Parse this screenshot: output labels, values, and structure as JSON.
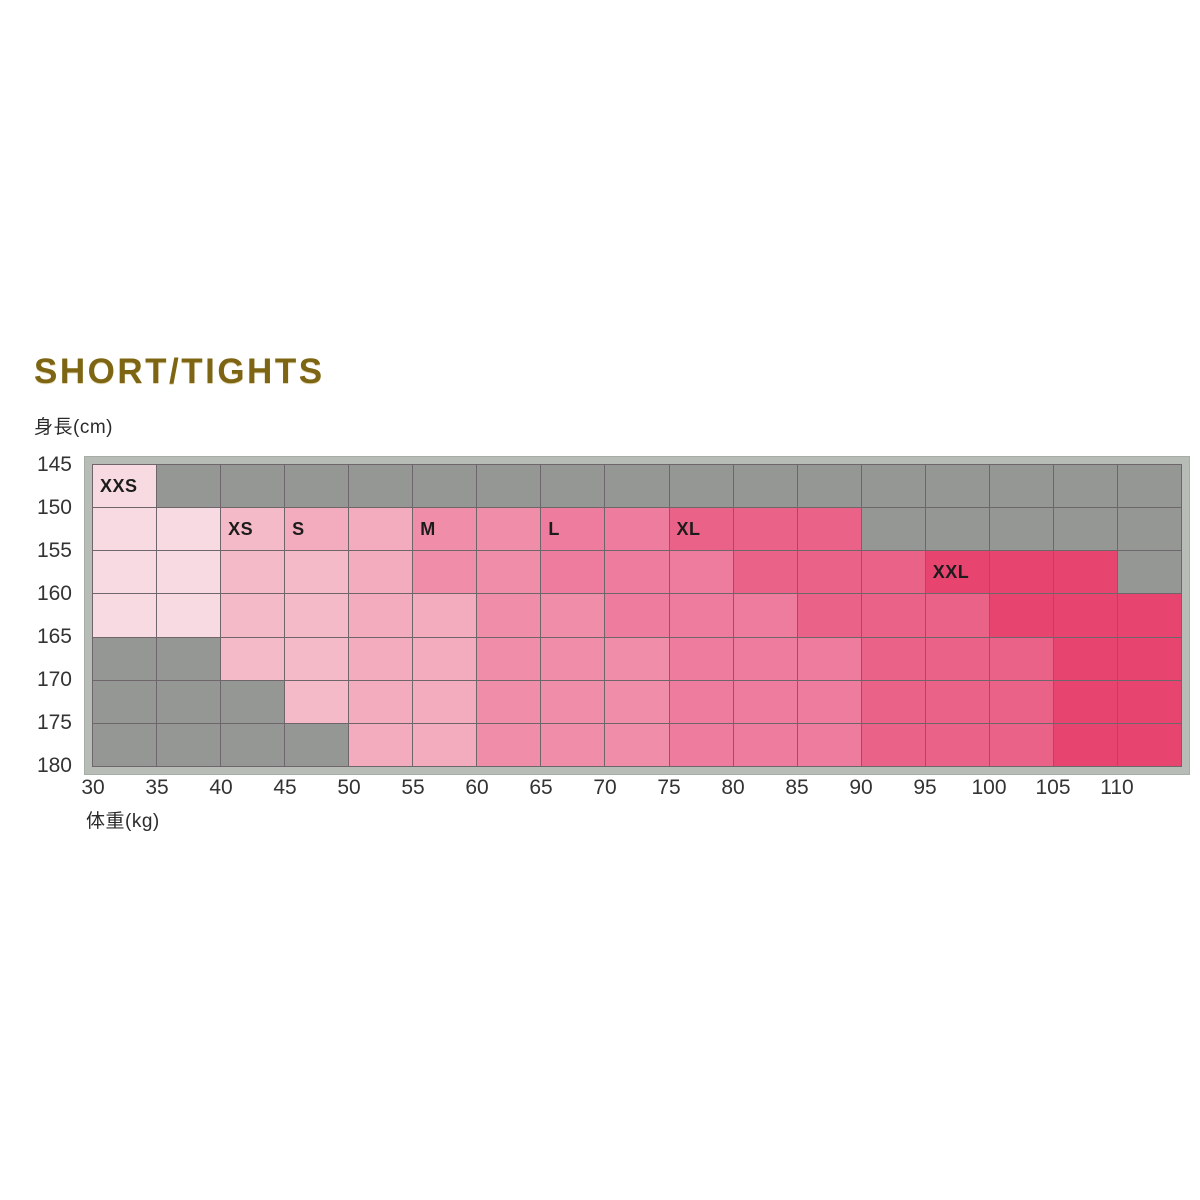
{
  "page": {
    "background": "#ffffff"
  },
  "header": {
    "title": "SHORT/TIGHTS",
    "title_color": "#7e6513"
  },
  "chart_data": {
    "type": "heatmap",
    "title": "SHORT/TIGHTS",
    "x_axis": {
      "label": "体重(kg)",
      "unit": "kg",
      "ticks": [
        "30",
        "35",
        "40",
        "45",
        "50",
        "55",
        "60",
        "65",
        "70",
        "75",
        "80",
        "85",
        "90",
        "95",
        "100",
        "105",
        "110"
      ],
      "note": "ticks mark left edges of the 17 weight columns, 5 kg per column, grid extends one unlabeled column past 110"
    },
    "y_axis": {
      "label": "身長(cm)",
      "unit": "cm",
      "ticks": [
        "145",
        "150",
        "155",
        "160",
        "165",
        "170",
        "175",
        "180"
      ],
      "note": "ticks mark row boundaries of the 7 height rows, 5 cm per row"
    },
    "sizes": [
      {
        "code": "XXS",
        "color": "#f8dbe2"
      },
      {
        "code": "XS",
        "color": "#f5bac8"
      },
      {
        "code": "S",
        "color": "#f3abbe"
      },
      {
        "code": "M",
        "color": "#f08ea9"
      },
      {
        "code": "L",
        "color": "#ee7c9e"
      },
      {
        "code": "XL",
        "color": "#eb6289"
      },
      {
        "code": "XXL",
        "color": "#e7456f"
      }
    ],
    "na_color": "#949794",
    "grid_line_color": "#6f666b",
    "frame_color": "#b7bcb7",
    "rows": [
      {
        "height_range": "145-150",
        "cells": [
          "XXS",
          "-",
          "-",
          "-",
          "-",
          "-",
          "-",
          "-",
          "-",
          "-",
          "-",
          "-",
          "-",
          "-",
          "-",
          "-",
          "-"
        ]
      },
      {
        "height_range": "150-155",
        "cells": [
          "XXS",
          "XXS",
          "XS",
          "S",
          "S",
          "M",
          "M",
          "L",
          "L",
          "XL",
          "XL",
          "XL",
          "-",
          "-",
          "-",
          "-",
          "-"
        ]
      },
      {
        "height_range": "155-160",
        "cells": [
          "XXS",
          "XXS",
          "XS",
          "XS",
          "S",
          "M",
          "M",
          "L",
          "L",
          "L",
          "XL",
          "XL",
          "XL",
          "XXL",
          "XXL",
          "XXL",
          "-"
        ]
      },
      {
        "height_range": "160-165",
        "cells": [
          "XXS",
          "XXS",
          "XS",
          "XS",
          "S",
          "S",
          "M",
          "M",
          "L",
          "L",
          "L",
          "XL",
          "XL",
          "XL",
          "XXL",
          "XXL",
          "XXL"
        ]
      },
      {
        "height_range": "165-170",
        "cells": [
          "-",
          "-",
          "XS",
          "XS",
          "S",
          "S",
          "M",
          "M",
          "M",
          "L",
          "L",
          "L",
          "XL",
          "XL",
          "XL",
          "XXL",
          "XXL"
        ]
      },
      {
        "height_range": "170-175",
        "cells": [
          "-",
          "-",
          "-",
          "XS",
          "S",
          "S",
          "M",
          "M",
          "M",
          "L",
          "L",
          "L",
          "XL",
          "XL",
          "XL",
          "XXL",
          "XXL"
        ]
      },
      {
        "height_range": "175-180",
        "cells": [
          "-",
          "-",
          "-",
          "-",
          "S",
          "S",
          "M",
          "M",
          "M",
          "L",
          "L",
          "L",
          "XL",
          "XL",
          "XL",
          "XXL",
          "XXL"
        ]
      }
    ],
    "size_labels": [
      {
        "text": "XXS",
        "row": 0,
        "col": 0
      },
      {
        "text": "XS",
        "row": 1,
        "col": 2
      },
      {
        "text": "S",
        "row": 1,
        "col": 3
      },
      {
        "text": "M",
        "row": 1,
        "col": 5
      },
      {
        "text": "L",
        "row": 1,
        "col": 7
      },
      {
        "text": "XL",
        "row": 1,
        "col": 9
      },
      {
        "text": "XXL",
        "row": 2,
        "col": 13
      }
    ]
  }
}
